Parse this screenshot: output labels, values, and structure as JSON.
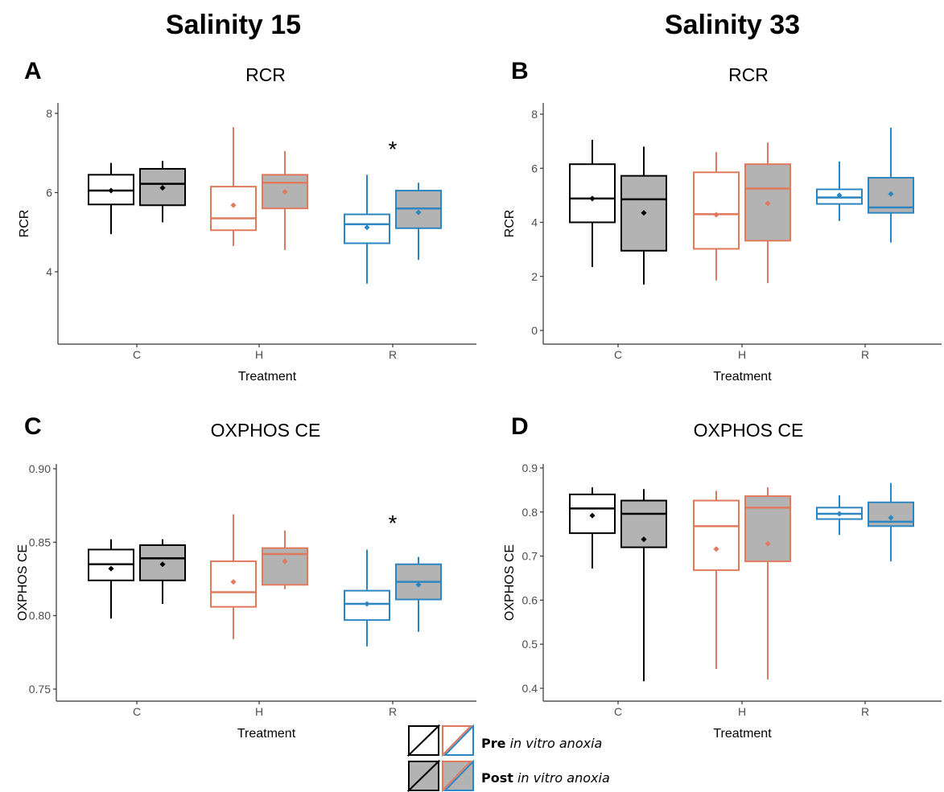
{
  "figure": {
    "left_heading": "Salinity 15",
    "right_heading": "Salinity 33"
  },
  "legend": {
    "pre_bold": "Pre",
    "pre_italic": "in vitro anoxia",
    "post_bold": "Post",
    "post_italic": "in vitro anoxia"
  },
  "colors": {
    "C": "#000000",
    "H": "#e07a5f",
    "R": "#2e86c1",
    "post_fill": "#b3b3b3",
    "pre_fill": "#ffffff"
  },
  "chart_data": [
    {
      "panel": "A",
      "type": "box",
      "title": "RCR",
      "xlabel": "Treatment",
      "ylabel": "RCR",
      "categories": [
        "C",
        "H",
        "R"
      ],
      "yticks": [
        4,
        6,
        8
      ],
      "ylim": [
        2.6,
        8.2
      ],
      "significance": [
        {
          "category": "R",
          "label": "*"
        }
      ],
      "boxes": [
        {
          "category": "C",
          "condition": "Pre",
          "whisker_low": 4.95,
          "q1": 5.7,
          "median": 6.05,
          "q3": 6.45,
          "whisker_high": 6.75,
          "mean": 6.05
        },
        {
          "category": "C",
          "condition": "Post",
          "whisker_low": 5.25,
          "q1": 5.68,
          "median": 6.22,
          "q3": 6.6,
          "whisker_high": 6.8,
          "mean": 6.12
        },
        {
          "category": "H",
          "condition": "Pre",
          "whisker_low": 4.65,
          "q1": 5.05,
          "median": 5.35,
          "q3": 6.15,
          "whisker_high": 7.65,
          "mean": 5.68
        },
        {
          "category": "H",
          "condition": "Post",
          "whisker_low": 4.55,
          "q1": 5.6,
          "median": 6.25,
          "q3": 6.45,
          "whisker_high": 7.05,
          "mean": 6.02
        },
        {
          "category": "R",
          "condition": "Pre",
          "whisker_low": 3.7,
          "q1": 4.72,
          "median": 5.2,
          "q3": 5.45,
          "whisker_high": 6.45,
          "mean": 5.12
        },
        {
          "category": "R",
          "condition": "Post",
          "whisker_low": 4.3,
          "q1": 5.1,
          "median": 5.6,
          "q3": 6.05,
          "whisker_high": 6.25,
          "mean": 5.5
        }
      ]
    },
    {
      "panel": "B",
      "type": "box",
      "title": "RCR",
      "xlabel": "Treatment",
      "ylabel": "RCR",
      "categories": [
        "C",
        "H",
        "R"
      ],
      "yticks": [
        0,
        2,
        4,
        6,
        8
      ],
      "ylim": [
        -0.4,
        8.4
      ],
      "significance": [],
      "boxes": [
        {
          "category": "C",
          "condition": "Pre",
          "whisker_low": 2.35,
          "q1": 4.0,
          "median": 4.88,
          "q3": 6.15,
          "whisker_high": 7.05,
          "mean": 4.88
        },
        {
          "category": "C",
          "condition": "Post",
          "whisker_low": 1.7,
          "q1": 2.95,
          "median": 4.85,
          "q3": 5.72,
          "whisker_high": 6.8,
          "mean": 4.35
        },
        {
          "category": "H",
          "condition": "Pre",
          "whisker_low": 1.85,
          "q1": 3.02,
          "median": 4.3,
          "q3": 5.85,
          "whisker_high": 6.6,
          "mean": 4.28
        },
        {
          "category": "H",
          "condition": "Post",
          "whisker_low": 1.75,
          "q1": 3.32,
          "median": 5.25,
          "q3": 6.15,
          "whisker_high": 6.95,
          "mean": 4.7
        },
        {
          "category": "R",
          "condition": "Pre",
          "whisker_low": 4.05,
          "q1": 4.68,
          "median": 4.92,
          "q3": 5.22,
          "whisker_high": 6.25,
          "mean": 5.0
        },
        {
          "category": "R",
          "condition": "Post",
          "whisker_low": 3.25,
          "q1": 4.35,
          "median": 4.55,
          "q3": 5.65,
          "whisker_high": 7.5,
          "mean": 5.05
        }
      ]
    },
    {
      "panel": "C",
      "type": "box",
      "title": "OXPHOS CE",
      "xlabel": "Treatment",
      "ylabel": "OXPHOS CE",
      "categories": [
        "C",
        "H",
        "R"
      ],
      "yticks": [
        0.75,
        0.8,
        0.85,
        0.9
      ],
      "ytick_labels": [
        "0.75",
        "0.80",
        "0.85",
        "0.90"
      ],
      "ylim": [
        0.746,
        0.902
      ],
      "significance": [
        {
          "category": "R",
          "label": "*"
        }
      ],
      "boxes": [
        {
          "category": "C",
          "condition": "Pre",
          "whisker_low": 0.798,
          "q1": 0.824,
          "median": 0.835,
          "q3": 0.845,
          "whisker_high": 0.852,
          "mean": 0.832
        },
        {
          "category": "C",
          "condition": "Post",
          "whisker_low": 0.808,
          "q1": 0.824,
          "median": 0.839,
          "q3": 0.848,
          "whisker_high": 0.852,
          "mean": 0.835
        },
        {
          "category": "H",
          "condition": "Pre",
          "whisker_low": 0.784,
          "q1": 0.806,
          "median": 0.816,
          "q3": 0.837,
          "whisker_high": 0.869,
          "mean": 0.823
        },
        {
          "category": "H",
          "condition": "Post",
          "whisker_low": 0.818,
          "q1": 0.821,
          "median": 0.842,
          "q3": 0.846,
          "whisker_high": 0.858,
          "mean": 0.837
        },
        {
          "category": "R",
          "condition": "Pre",
          "whisker_low": 0.779,
          "q1": 0.797,
          "median": 0.808,
          "q3": 0.817,
          "whisker_high": 0.845,
          "mean": 0.808
        },
        {
          "category": "R",
          "condition": "Post",
          "whisker_low": 0.789,
          "q1": 0.811,
          "median": 0.823,
          "q3": 0.835,
          "whisker_high": 0.84,
          "mean": 0.821
        }
      ]
    },
    {
      "panel": "D",
      "type": "box",
      "title": "OXPHOS CE",
      "xlabel": "Treatment",
      "ylabel": "OXPHOS CE",
      "categories": [
        "C",
        "H",
        "R"
      ],
      "yticks": [
        0.4,
        0.5,
        0.6,
        0.7,
        0.8,
        0.9
      ],
      "ytick_labels": [
        "0.4",
        "0.5",
        "0.6",
        "0.7",
        "0.8",
        "0.9"
      ],
      "ylim": [
        0.387,
        0.918
      ],
      "significance": [],
      "boxes": [
        {
          "category": "C",
          "condition": "Pre",
          "whisker_low": 0.672,
          "q1": 0.752,
          "median": 0.808,
          "q3": 0.84,
          "whisker_high": 0.856,
          "mean": 0.792
        },
        {
          "category": "C",
          "condition": "Post",
          "whisker_low": 0.416,
          "q1": 0.72,
          "median": 0.796,
          "q3": 0.826,
          "whisker_high": 0.852,
          "mean": 0.738
        },
        {
          "category": "H",
          "condition": "Pre",
          "whisker_low": 0.444,
          "q1": 0.668,
          "median": 0.768,
          "q3": 0.826,
          "whisker_high": 0.848,
          "mean": 0.716
        },
        {
          "category": "H",
          "condition": "Post",
          "whisker_low": 0.42,
          "q1": 0.688,
          "median": 0.81,
          "q3": 0.836,
          "whisker_high": 0.856,
          "mean": 0.728
        },
        {
          "category": "R",
          "condition": "Pre",
          "whisker_low": 0.748,
          "q1": 0.784,
          "median": 0.796,
          "q3": 0.81,
          "whisker_high": 0.838,
          "mean": 0.796
        },
        {
          "category": "R",
          "condition": "Post",
          "whisker_low": 0.688,
          "q1": 0.768,
          "median": 0.778,
          "q3": 0.822,
          "whisker_high": 0.866,
          "mean": 0.787
        }
      ]
    }
  ]
}
